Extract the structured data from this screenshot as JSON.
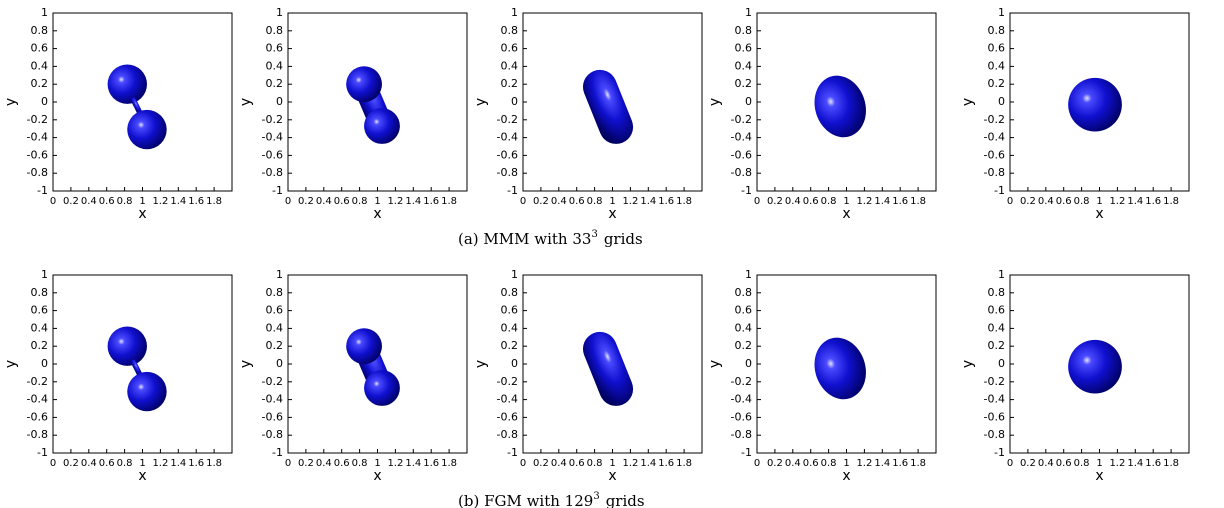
{
  "axes": {
    "xlabel": "x",
    "ylabel": "y",
    "xlim": [
      0,
      2
    ],
    "ylim": [
      -1,
      1
    ],
    "xticks": [
      0,
      0.2,
      0.4,
      0.6,
      0.8,
      1,
      1.2,
      1.4,
      1.6,
      1.8
    ],
    "yticks": [
      -1,
      -0.8,
      -0.6,
      -0.4,
      -0.2,
      0,
      0.2,
      0.4,
      0.6,
      0.8,
      1
    ]
  },
  "rows": [
    {
      "caption": {
        "text": "(a) MMM with 33",
        "exponent": "3",
        "suffix": "grids"
      }
    },
    {
      "caption": {
        "text": "(b) FGM with 129",
        "exponent": "3",
        "suffix": "grids"
      }
    }
  ]
}
